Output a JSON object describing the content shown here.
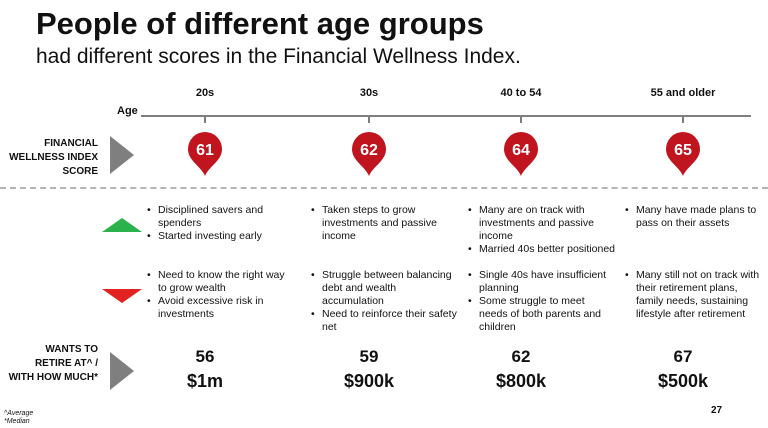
{
  "title": "People of different age groups",
  "subtitle": "had different scores in the Financial Wellness Index.",
  "age_axis_label": "Age",
  "score_row_label": "FINANCIAL WELLNESS INDEX SCORE",
  "retire_row_label": "WANTS TO RETIRE AT^ / WITH HOW MUCH*",
  "colors": {
    "pin": "#c0141e",
    "positive": "#2bb24c",
    "negative": "#e32222",
    "arrow": "#7f7f7f"
  },
  "icons": {
    "positive": "triangle-up-icon",
    "negative": "triangle-down-icon",
    "pin": "map-pin-icon"
  },
  "groups": [
    {
      "age": "20s",
      "score": "61",
      "positives": [
        "Disciplined savers and spenders",
        "Started investing early"
      ],
      "negatives": [
        "Need to know the right way to grow wealth",
        "Avoid excessive risk in investments"
      ],
      "retire_age": "56",
      "retire_amount": "$1m"
    },
    {
      "age": "30s",
      "score": "62",
      "positives": [
        "Taken steps to grow investments and passive income"
      ],
      "negatives": [
        "Struggle between balancing debt and wealth accumulation",
        "Need to reinforce their safety net"
      ],
      "retire_age": "59",
      "retire_amount": "$900k"
    },
    {
      "age": "40 to 54",
      "score": "64",
      "positives": [
        "Many are on track with investments and passive income",
        "Married 40s better positioned"
      ],
      "negatives": [
        "Single 40s have insufficient planning",
        "Some struggle to meet needs of both parents and children"
      ],
      "retire_age": "62",
      "retire_amount": "$800k"
    },
    {
      "age": "55 and older",
      "score": "65",
      "positives": [
        "Many have made plans to pass on their assets"
      ],
      "negatives": [
        "Many still not on track with their retirement plans, family needs, sustaining lifestyle after retirement"
      ],
      "retire_age": "67",
      "retire_amount": "$500k"
    }
  ],
  "footnotes": [
    "^Average",
    "*Median"
  ],
  "page_number": "27"
}
